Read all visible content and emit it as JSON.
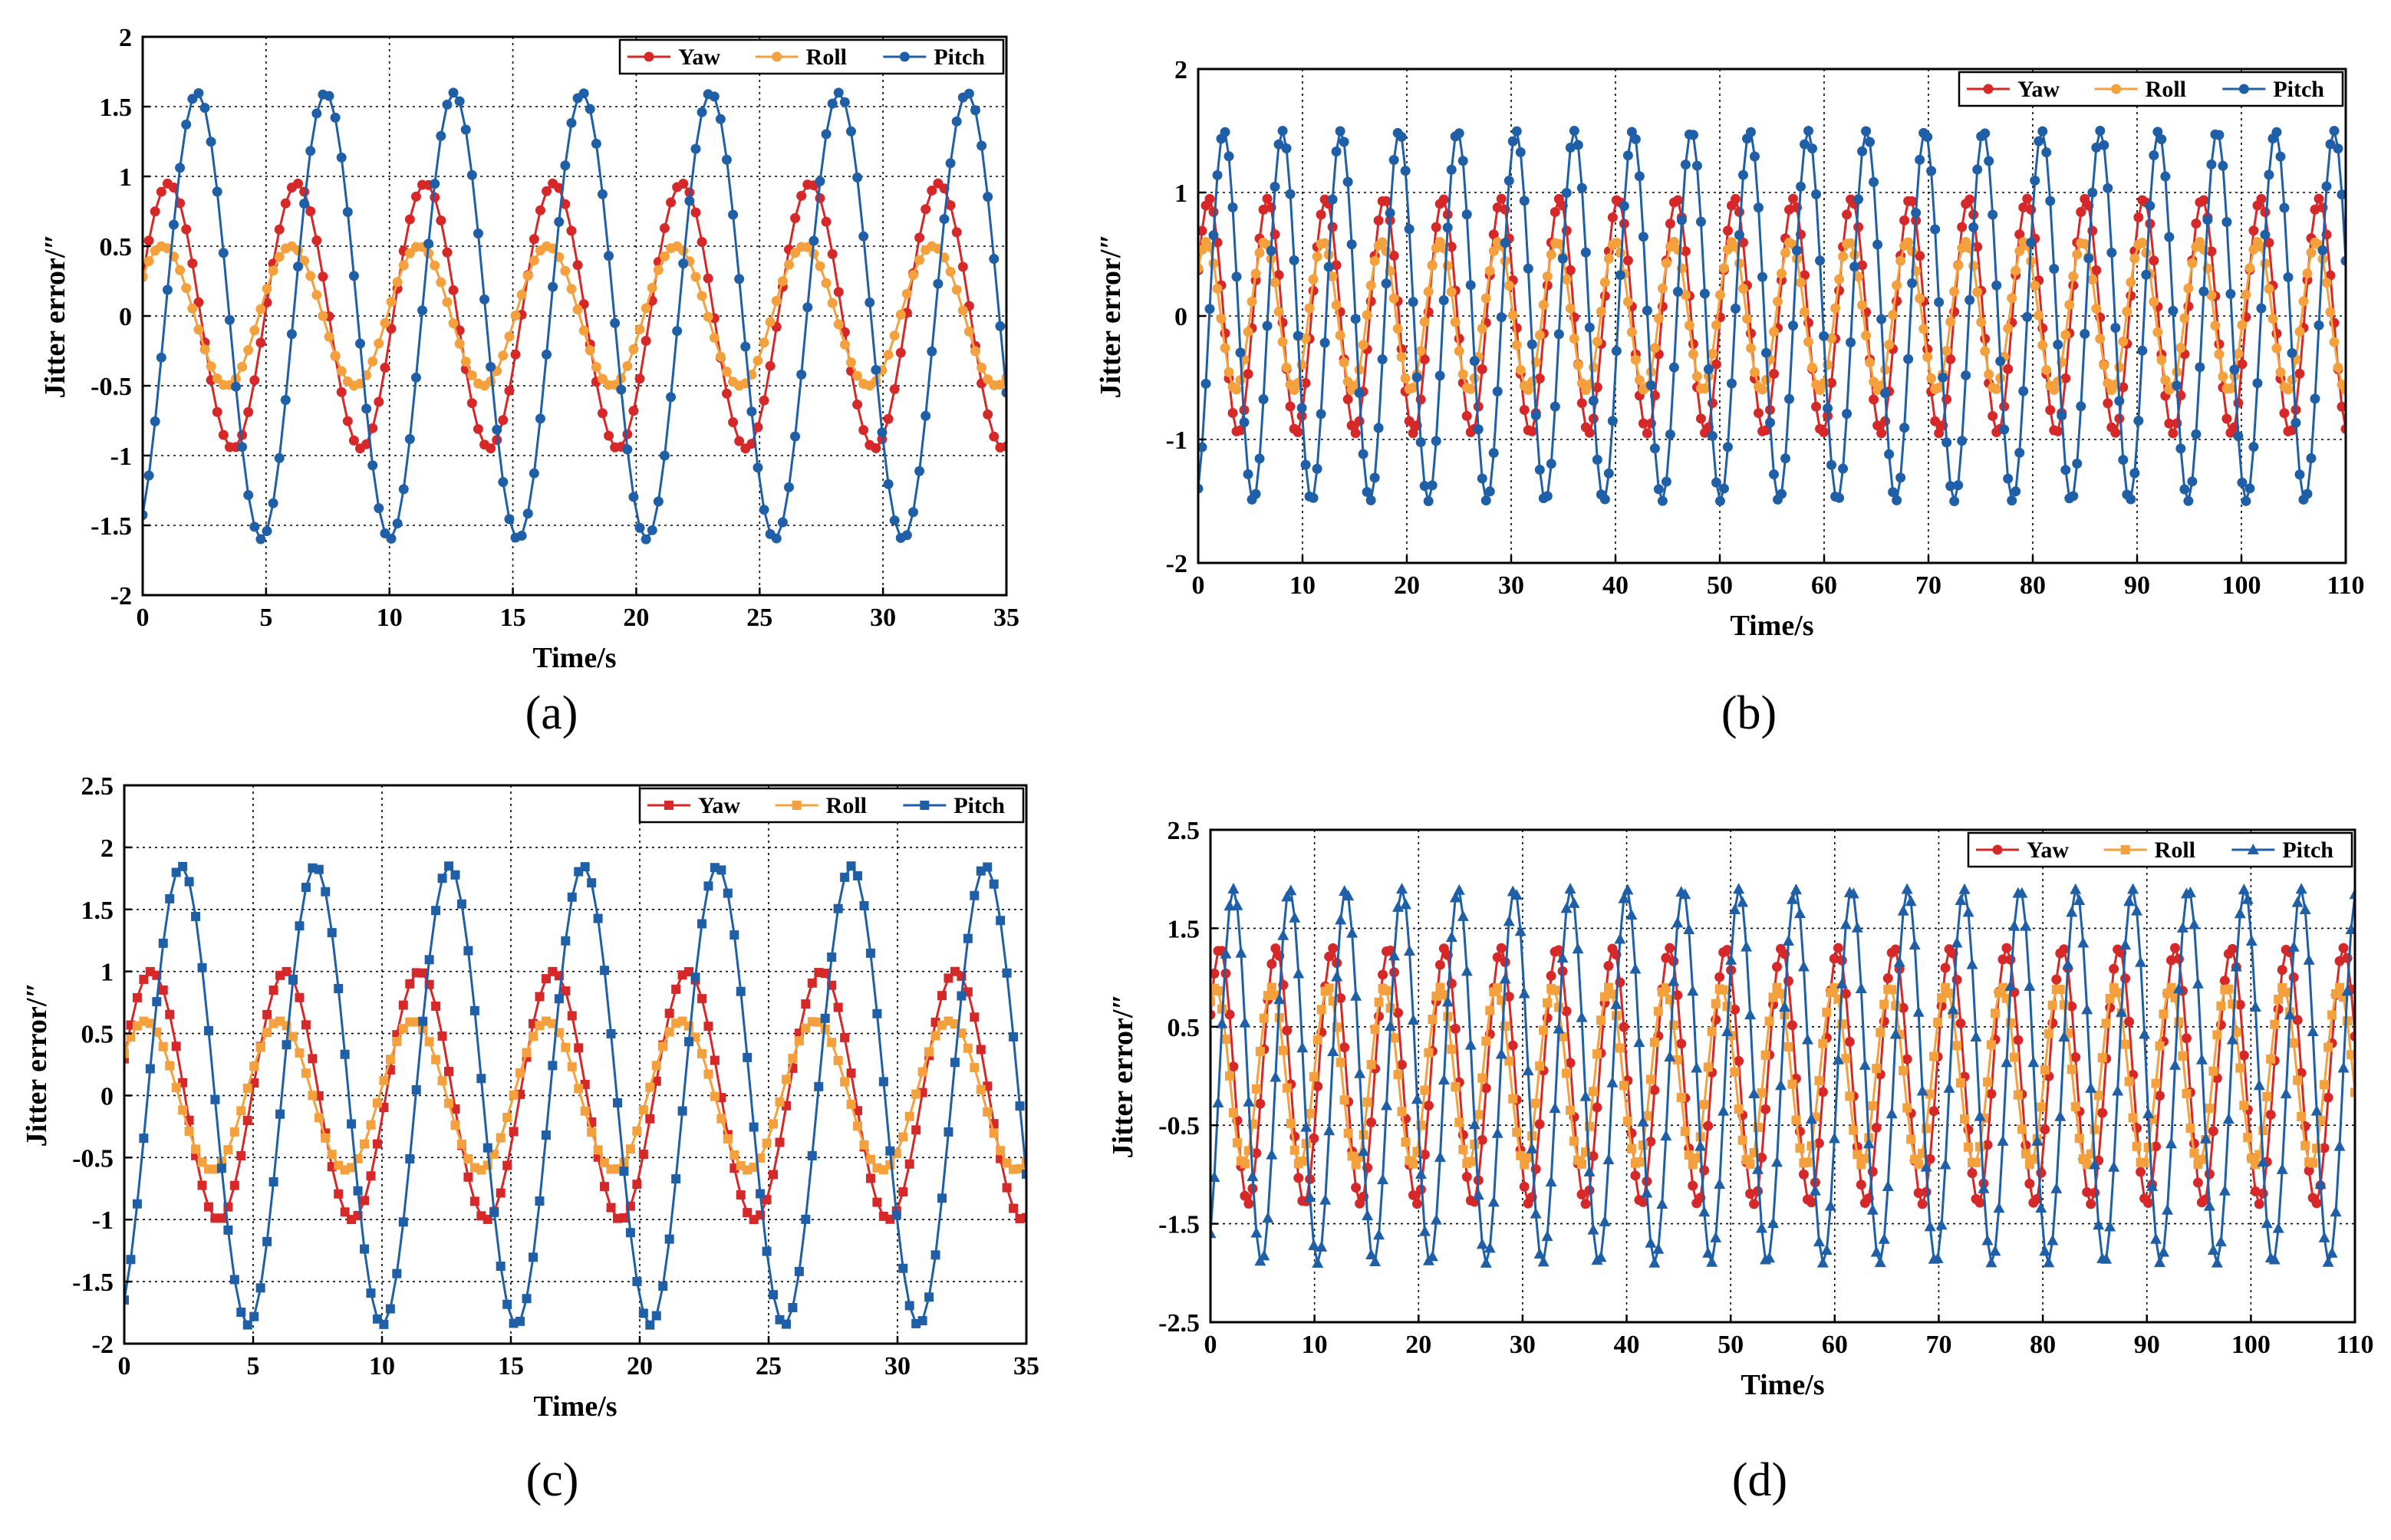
{
  "colors": {
    "Yaw": "#d62828",
    "Roll": "#f4a03c",
    "Pitch": "#1f5fa8"
  },
  "chart_data": [
    {
      "panel_label": "(a)",
      "type": "line",
      "title": "",
      "xlabel": "Time/s",
      "ylabel": "Jitter error/″",
      "xlim": [
        0,
        35
      ],
      "ylim": [
        -2,
        2
      ],
      "xticks": [
        0,
        5,
        10,
        15,
        20,
        25,
        30,
        35
      ],
      "xtick_labels": [
        "0",
        "5",
        "10",
        "15",
        "20",
        "25",
        "30",
        "35"
      ],
      "yticks": [
        -2,
        -1.5,
        -1,
        -0.5,
        0,
        0.5,
        1,
        1.5,
        2
      ],
      "ytick_labels": [
        "-2",
        "-1.5",
        "-1",
        "-0.5",
        "0",
        "0.5",
        "1",
        "1.5",
        "2"
      ],
      "grid": true,
      "legend": [
        "Yaw",
        "Roll",
        "Pitch"
      ],
      "legend_position": "top-right",
      "marker": "circle",
      "series": [
        {
          "name": "Yaw",
          "period": 5.2,
          "amplitude": 0.95,
          "phase": 0.3,
          "x_start": 0,
          "x_end": 35,
          "n_points": 140
        },
        {
          "name": "Roll",
          "period": 5.2,
          "amplitude": 0.5,
          "phase": 0.6,
          "x_start": 0,
          "x_end": 35,
          "n_points": 140
        },
        {
          "name": "Pitch",
          "period": 5.2,
          "amplitude": 1.6,
          "phase": -1.1,
          "x_start": 0,
          "x_end": 35,
          "n_points": 140
        }
      ]
    },
    {
      "panel_label": "(b)",
      "type": "line",
      "title": "",
      "xlabel": "Time/s",
      "ylabel": "Jitter error/″",
      "xlim": [
        0,
        110
      ],
      "ylim": [
        -2,
        2
      ],
      "xticks": [
        0,
        10,
        20,
        30,
        40,
        50,
        60,
        70,
        80,
        90,
        100,
        110
      ],
      "xtick_labels": [
        "0",
        "10",
        "20",
        "30",
        "40",
        "50",
        "60",
        "70",
        "80",
        "90",
        "100",
        "110"
      ],
      "yticks": [
        -2,
        -1,
        0,
        1,
        2
      ],
      "ytick_labels": [
        "-2",
        "-1",
        "0",
        "1",
        "2"
      ],
      "grid": true,
      "legend": [
        "Yaw",
        "Roll",
        "Pitch"
      ],
      "legend_position": "top-right",
      "marker": "circle",
      "series": [
        {
          "name": "Yaw",
          "period": 5.6,
          "amplitude": 0.95,
          "phase": 0.4,
          "x_start": 0,
          "x_end": 110,
          "n_points": 300
        },
        {
          "name": "Roll",
          "period": 5.6,
          "amplitude": 0.6,
          "phase": 0.7,
          "x_start": 0,
          "x_end": 110,
          "n_points": 300
        },
        {
          "name": "Pitch",
          "period": 5.6,
          "amplitude": 1.5,
          "phase": -1.2,
          "x_start": 0,
          "x_end": 110,
          "n_points": 300
        }
      ]
    },
    {
      "panel_label": "(c)",
      "type": "line",
      "title": "",
      "xlabel": "Time/s",
      "ylabel": "Jitter error/″",
      "xlim": [
        0,
        35
      ],
      "ylim": [
        -2,
        2.5
      ],
      "xticks": [
        0,
        5,
        10,
        15,
        20,
        25,
        30,
        35
      ],
      "xtick_labels": [
        "0",
        "5",
        "10",
        "15",
        "20",
        "25",
        "30",
        "35"
      ],
      "yticks": [
        -2,
        -1.5,
        -1,
        -0.5,
        0,
        0.5,
        1,
        1.5,
        2,
        2.5
      ],
      "ytick_labels": [
        "-2",
        "-1.5",
        "-1",
        "-0.5",
        "0",
        "0.5",
        "1",
        "1.5",
        "2",
        "2.5"
      ],
      "grid": true,
      "legend": [
        "Yaw",
        "Roll",
        "Pitch"
      ],
      "legend_position": "top-right",
      "marker": "square",
      "series": [
        {
          "name": "Yaw",
          "period": 5.2,
          "amplitude": 1.0,
          "phase": 0.3,
          "x_start": 0,
          "x_end": 35,
          "n_points": 140
        },
        {
          "name": "Roll",
          "period": 5.2,
          "amplitude": 0.6,
          "phase": 0.6,
          "x_start": 0,
          "x_end": 35,
          "n_points": 140
        },
        {
          "name": "Pitch",
          "period": 5.2,
          "amplitude": 1.85,
          "phase": -1.1,
          "x_start": 0,
          "x_end": 35,
          "n_points": 140
        }
      ]
    },
    {
      "panel_label": "(d)",
      "type": "line",
      "title": "",
      "xlabel": "Time/s",
      "ylabel": "Jitter error/″",
      "xlim": [
        0,
        110
      ],
      "ylim": [
        -2.5,
        2.5
      ],
      "xticks": [
        0,
        10,
        20,
        30,
        40,
        50,
        60,
        70,
        80,
        90,
        100,
        110
      ],
      "xtick_labels": [
        "0",
        "10",
        "20",
        "30",
        "40",
        "50",
        "60",
        "70",
        "80",
        "90",
        "100",
        "110"
      ],
      "yticks": [
        -2.5,
        -1.5,
        -0.5,
        0.5,
        1.5,
        2.5
      ],
      "ytick_labels": [
        "-2.5",
        "-1.5",
        "-0.5",
        "0.5",
        "1.5",
        "2.5"
      ],
      "grid": true,
      "legend": [
        "Yaw",
        "Roll",
        "Pitch"
      ],
      "legend_position": "top-right",
      "marker": "mixed",
      "series": [
        {
          "name": "Yaw",
          "marker": "circle",
          "period": 5.4,
          "amplitude": 1.3,
          "phase": 0.5,
          "x_start": 0,
          "x_end": 110,
          "n_points": 300
        },
        {
          "name": "Roll",
          "marker": "square",
          "period": 5.4,
          "amplitude": 0.9,
          "phase": 1.0,
          "x_start": 0,
          "x_end": 110,
          "n_points": 300
        },
        {
          "name": "Pitch",
          "marker": "triangle",
          "period": 5.4,
          "amplitude": 1.9,
          "phase": -1.0,
          "x_start": 0,
          "x_end": 110,
          "n_points": 300
        }
      ]
    }
  ]
}
